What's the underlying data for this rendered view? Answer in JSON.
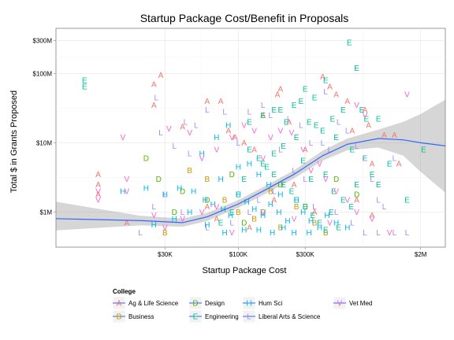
{
  "chart_data": {
    "type": "scatter",
    "title": "Startup Package Cost/Benefit in Proposals",
    "xlabel": "Startup Package Cost",
    "ylabel": "Total $ in Grants Proposed",
    "x_scale": "log10",
    "y_scale": "log10",
    "xlim": [
      5000,
      3000000
    ],
    "ylim": [
      310000,
      450000000
    ],
    "x_ticks": [
      {
        "value": 30000,
        "label": "$30K"
      },
      {
        "value": 100000,
        "label": "$100K"
      },
      {
        "value": 300000,
        "label": "$300K"
      },
      {
        "value": 2000000,
        "label": "$2M"
      }
    ],
    "y_ticks": [
      {
        "value": 1000000,
        "label": "$1M"
      },
      {
        "value": 10000000,
        "label": "$10M"
      },
      {
        "value": 100000000,
        "label": "$100M"
      },
      {
        "value": 300000000,
        "label": "$300M"
      }
    ],
    "grid": true,
    "legend_position": "bottom",
    "legend_title": "College",
    "series": [
      {
        "name": "Ag & Life Science",
        "letter": "A",
        "color": "#F8766D",
        "points": [
          [
            28000,
            95000000
          ],
          [
            25000,
            70000000
          ],
          [
            25000,
            35000000
          ],
          [
            10000,
            3500000
          ],
          [
            10000,
            2500000
          ],
          [
            10000,
            1800000
          ],
          [
            40000,
            17000000
          ],
          [
            60000,
            40000000
          ],
          [
            75000,
            40000000
          ],
          [
            85000,
            15000000
          ],
          [
            95000,
            12000000
          ],
          [
            110000,
            10000000
          ],
          [
            130000,
            8000000
          ],
          [
            150000,
            25000000
          ],
          [
            190000,
            50000000
          ],
          [
            200000,
            60000000
          ],
          [
            230000,
            20000000
          ],
          [
            300000,
            8000000
          ],
          [
            400000,
            90000000
          ],
          [
            450000,
            65000000
          ],
          [
            500000,
            50000000
          ],
          [
            600000,
            40000000
          ],
          [
            650000,
            15000000
          ],
          [
            800000,
            30000000
          ],
          [
            850000,
            18000000
          ],
          [
            900000,
            5000000
          ],
          [
            1100000,
            13000000
          ],
          [
            1300000,
            13000000
          ],
          [
            1400000,
            5000000
          ],
          [
            60000,
            1200000
          ],
          [
            70000,
            800000
          ],
          [
            120000,
            600000
          ],
          [
            180000,
            1500000
          ],
          [
            250000,
            2500000
          ],
          [
            350000,
            1000000
          ],
          [
            700000,
            1500000
          ],
          [
            900000,
            900000
          ],
          [
            16000,
            700000
          ]
        ]
      },
      {
        "name": "Business",
        "letter": "B",
        "color": "#C49A00",
        "points": [
          [
            45000,
            4000000
          ],
          [
            60000,
            3000000
          ],
          [
            80000,
            1500000
          ],
          [
            100000,
            1000000
          ],
          [
            130000,
            800000
          ],
          [
            170000,
            2000000
          ],
          [
            200000,
            600000
          ],
          [
            260000,
            1200000
          ],
          [
            350000,
            700000
          ],
          [
            420000,
            500000
          ],
          [
            30000,
            500000
          ]
        ]
      },
      {
        "name": "Design",
        "letter": "D",
        "color": "#53B400",
        "points": [
          [
            22000,
            6000000
          ],
          [
            27000,
            3000000
          ],
          [
            40000,
            2000000
          ],
          [
            60000,
            1500000
          ],
          [
            90000,
            3500000
          ],
          [
            110000,
            700000
          ],
          [
            150000,
            1000000
          ],
          [
            200000,
            2500000
          ],
          [
            300000,
            1200000
          ],
          [
            500000,
            3000000
          ],
          [
            700000,
            1800000
          ],
          [
            35000,
            1000000
          ]
        ]
      },
      {
        "name": "Engineering",
        "letter": "E",
        "color": "#00C094",
        "points": [
          [
            8000,
            80000000
          ],
          [
            8000,
            65000000
          ],
          [
            620000,
            280000000
          ],
          [
            700000,
            120000000
          ],
          [
            420000,
            80000000
          ],
          [
            300000,
            60000000
          ],
          [
            350000,
            45000000
          ],
          [
            280000,
            40000000
          ],
          [
            250000,
            35000000
          ],
          [
            200000,
            30000000
          ],
          [
            180000,
            30000000
          ],
          [
            150000,
            25000000
          ],
          [
            120000,
            20000000
          ],
          [
            220000,
            20000000
          ],
          [
            320000,
            20000000
          ],
          [
            360000,
            18000000
          ],
          [
            400000,
            15000000
          ],
          [
            500000,
            12000000
          ],
          [
            650000,
            8000000
          ],
          [
            800000,
            6000000
          ],
          [
            900000,
            3500000
          ],
          [
            1000000,
            2500000
          ],
          [
            1200000,
            5000000
          ],
          [
            1600000,
            1500000
          ],
          [
            2100000,
            8000000
          ],
          [
            120000,
            8000000
          ],
          [
            140000,
            6000000
          ],
          [
            160000,
            4500000
          ],
          [
            180000,
            3500000
          ],
          [
            210000,
            2500000
          ],
          [
            240000,
            2000000
          ],
          [
            260000,
            1500000
          ],
          [
            300000,
            1200000
          ],
          [
            340000,
            900000
          ],
          [
            380000,
            700000
          ],
          [
            420000,
            550000
          ],
          [
            460000,
            1000000
          ],
          [
            520000,
            600000
          ],
          [
            100000,
            1800000
          ],
          [
            90000,
            1000000
          ],
          [
            75000,
            700000
          ],
          [
            560000,
            30000000
          ],
          [
            760000,
            30000000
          ],
          [
            820000,
            22000000
          ],
          [
            1000000,
            22000000
          ],
          [
            470000,
            22000000
          ],
          [
            260000,
            12000000
          ],
          [
            210000,
            9000000
          ],
          [
            180000,
            7000000
          ],
          [
            150000,
            5000000
          ],
          [
            110000,
            3000000
          ],
          [
            290000,
            5500000
          ],
          [
            330000,
            3000000
          ],
          [
            420000,
            3500000
          ],
          [
            480000,
            2000000
          ],
          [
            560000,
            1500000
          ],
          [
            640000,
            1200000
          ],
          [
            700000,
            2500000
          ]
        ]
      },
      {
        "name": "Hum Sci",
        "letter": "H",
        "color": "#00B6EB",
        "points": [
          [
            15000,
            2000000
          ],
          [
            22000,
            2200000
          ],
          [
            30000,
            1800000
          ],
          [
            38000,
            2200000
          ],
          [
            48000,
            2000000
          ],
          [
            58000,
            1500000
          ],
          [
            66000,
            1300000
          ],
          [
            78000,
            1100000
          ],
          [
            88000,
            900000
          ],
          [
            100000,
            1800000
          ],
          [
            115000,
            1400000
          ],
          [
            130000,
            1100000
          ],
          [
            150000,
            900000
          ],
          [
            170000,
            1300000
          ],
          [
            195000,
            1000000
          ],
          [
            225000,
            750000
          ],
          [
            260000,
            1500000
          ],
          [
            290000,
            1000000
          ],
          [
            330000,
            750000
          ],
          [
            380000,
            600000
          ],
          [
            430000,
            900000
          ],
          [
            500000,
            700000
          ],
          [
            600000,
            600000
          ],
          [
            55000,
            7000000
          ],
          [
            70000,
            12000000
          ],
          [
            85000,
            18000000
          ],
          [
            120000,
            5000000
          ],
          [
            140000,
            3500000
          ],
          [
            45000,
            1000000
          ],
          [
            35000,
            800000
          ],
          [
            25000,
            650000
          ],
          [
            60000,
            650000
          ],
          [
            80000,
            500000
          ],
          [
            110000,
            550000
          ],
          [
            140000,
            550000
          ],
          [
            175000,
            500000
          ],
          [
            210000,
            600000
          ],
          [
            250000,
            500000
          ],
          [
            320000,
            500000
          ],
          [
            75000,
            3000000
          ],
          [
            100000,
            4500000
          ],
          [
            165000,
            2500000
          ],
          [
            200000,
            1800000
          ]
        ]
      },
      {
        "name": "Liberal Arts & Science",
        "letter": "L",
        "color": "#A58AFF",
        "points": [
          [
            26000,
            45000000
          ],
          [
            42000,
            20000000
          ],
          [
            50000,
            18000000
          ],
          [
            60000,
            30000000
          ],
          [
            80000,
            28000000
          ],
          [
            120000,
            28000000
          ],
          [
            150000,
            35000000
          ],
          [
            170000,
            25000000
          ],
          [
            230000,
            22000000
          ],
          [
            280000,
            18000000
          ],
          [
            330000,
            10000000
          ],
          [
            400000,
            10000000
          ],
          [
            450000,
            8000000
          ],
          [
            520000,
            20000000
          ],
          [
            600000,
            15000000
          ],
          [
            700000,
            9000000
          ],
          [
            800000,
            6000000
          ],
          [
            900000,
            3000000
          ],
          [
            1000000,
            1500000
          ],
          [
            1100000,
            1200000
          ],
          [
            1300000,
            6000000
          ],
          [
            28000,
            14000000
          ],
          [
            35000,
            9000000
          ],
          [
            45000,
            7000000
          ],
          [
            100000,
            10000000
          ],
          [
            200000,
            8000000
          ],
          [
            250000,
            4000000
          ],
          [
            300000,
            3000000
          ],
          [
            180000,
            2000000
          ],
          [
            140000,
            1500000
          ],
          [
            120000,
            1000000
          ],
          [
            90000,
            700000
          ],
          [
            60000,
            600000
          ],
          [
            40000,
            1000000
          ],
          [
            20000,
            500000
          ],
          [
            25000,
            1200000
          ],
          [
            30000,
            1800000
          ],
          [
            350000,
            1200000
          ],
          [
            500000,
            1000000
          ],
          [
            650000,
            700000
          ],
          [
            800000,
            500000
          ],
          [
            1000000,
            500000
          ],
          [
            1300000,
            500000
          ],
          [
            1600000,
            500000
          ],
          [
            420000,
            55000000
          ]
        ]
      },
      {
        "name": "Vet Med",
        "letter": "V",
        "color": "#FB61D7",
        "points": [
          [
            1600000,
            50000000
          ],
          [
            10000,
            2000000
          ],
          [
            10000,
            1500000
          ],
          [
            16000,
            3000000
          ],
          [
            16000,
            2000000
          ],
          [
            15000,
            12000000
          ],
          [
            32000,
            16000000
          ],
          [
            45000,
            14000000
          ],
          [
            55000,
            6000000
          ],
          [
            70000,
            8000000
          ],
          [
            90000,
            12000000
          ],
          [
            110000,
            18000000
          ],
          [
            130000,
            15000000
          ],
          [
            150000,
            6000000
          ],
          [
            170000,
            12000000
          ],
          [
            200000,
            15000000
          ],
          [
            240000,
            14000000
          ],
          [
            290000,
            8000000
          ],
          [
            330000,
            4000000
          ],
          [
            380000,
            5000000
          ],
          [
            420000,
            3000000
          ],
          [
            500000,
            2000000
          ],
          [
            600000,
            1500000
          ],
          [
            700000,
            1000000
          ],
          [
            900000,
            800000
          ],
          [
            1200000,
            500000
          ],
          [
            30000,
            600000
          ],
          [
            40000,
            800000
          ],
          [
            55000,
            1000000
          ],
          [
            70000,
            1200000
          ],
          [
            90000,
            500000
          ],
          [
            25000,
            900000
          ],
          [
            150000,
            1000000
          ],
          [
            250000,
            800000
          ],
          [
            450000,
            700000
          ],
          [
            700000,
            35000000
          ],
          [
            800000,
            25000000
          ]
        ]
      }
    ],
    "smooth": {
      "x": [
        5000,
        20000,
        40000,
        60000,
        100000,
        150000,
        250000,
        400000,
        600000,
        1000000,
        1500000,
        2000000,
        3000000
      ],
      "y": [
        800000,
        750000,
        700000,
        850000,
        1300000,
        2000000,
        3500000,
        6500000,
        9500000,
        11500000,
        11000000,
        10000000,
        9000000
      ],
      "lower": [
        540000,
        640000,
        610000,
        740000,
        1150000,
        1750000,
        3050000,
        5500000,
        7800000,
        8500000,
        6500000,
        3800000,
        1900000
      ],
      "upper": [
        1400000,
        880000,
        800000,
        970000,
        1480000,
        2280000,
        4000000,
        7700000,
        11500000,
        15500000,
        20000000,
        26000000,
        42000000
      ],
      "line_color": "#3366FF",
      "band_color": "#999999"
    }
  }
}
